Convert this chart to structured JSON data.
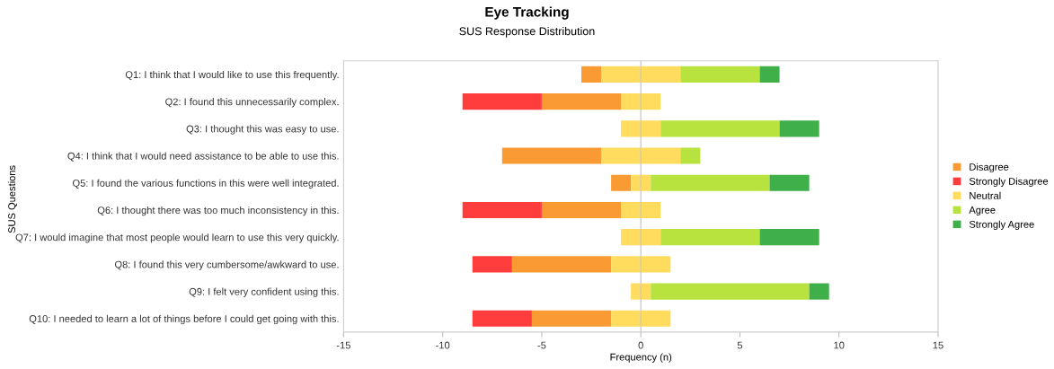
{
  "chart_data": {
    "type": "bar",
    "orientation": "horizontal",
    "title": "Eye Tracking",
    "subtitle": "SUS Response Distribution",
    "xlabel": "Frequency (n)",
    "ylabel": "SUS Questions",
    "categories": [
      "Q1: I think that I would like to use this frequently.",
      "Q2: I found this unnecessarily complex.",
      "Q3: I thought this was easy to use.",
      "Q4: I think that I would need assistance to be able to use this.",
      "Q5: I found the various functions in this were well integrated.",
      "Q6: I thought there was too much inconsistency in this.",
      "Q7: I would imagine that most people would learn to use this very quickly.",
      "Q8: I found this very cumbersome/awkward to use.",
      "Q9: I felt very confident using this.",
      "Q10: I needed to learn a lot of things before I could get going with this."
    ],
    "series": [
      {
        "name": "Disagree",
        "color": "#f99a33",
        "values": [
          -1,
          -4,
          null,
          -5,
          -1,
          -4,
          null,
          -5,
          null,
          -4
        ],
        "base": [
          -2,
          -1,
          null,
          -2,
          -0.5,
          -1,
          null,
          -1.5,
          null,
          -1.5
        ]
      },
      {
        "name": "Strongly Disagree",
        "color": "#ff3d3d",
        "values": [
          null,
          -4,
          null,
          null,
          null,
          -4,
          null,
          -2,
          null,
          -3
        ],
        "base": [
          null,
          -5,
          null,
          null,
          null,
          -5,
          null,
          -6.5,
          null,
          -5.5
        ]
      },
      {
        "name": "Neutral",
        "color": "#ffdb5e",
        "values": [
          4,
          2,
          2,
          4,
          1,
          2,
          2,
          3,
          1,
          3
        ],
        "base": [
          -2,
          -1,
          -1,
          -2,
          -0.5,
          -1,
          -1,
          -1.5,
          -0.5,
          -1.5
        ]
      },
      {
        "name": "Agree",
        "color": "#b8e23d",
        "values": [
          4,
          null,
          6,
          1,
          6,
          null,
          5,
          null,
          8,
          null
        ],
        "base": [
          2,
          null,
          1,
          2,
          0.5,
          null,
          1,
          null,
          0.5,
          null
        ]
      },
      {
        "name": "Strongly Agree",
        "color": "#3faf4a",
        "values": [
          1,
          null,
          2,
          null,
          2,
          null,
          3,
          null,
          1,
          null
        ],
        "base": [
          6,
          null,
          7,
          null,
          6.5,
          null,
          6,
          null,
          8.5,
          null
        ]
      }
    ],
    "xlim": [
      -15,
      15
    ],
    "xticks": [
      -15,
      -10,
      -5,
      0,
      5,
      10,
      15
    ],
    "legend": "right"
  }
}
